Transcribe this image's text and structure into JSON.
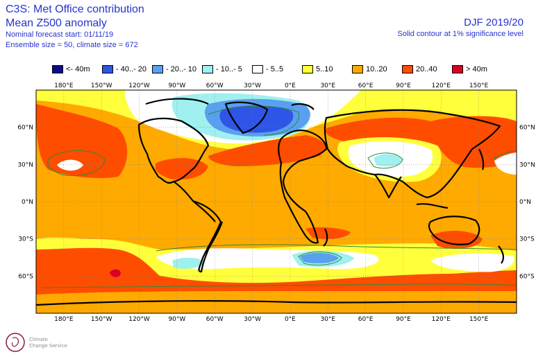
{
  "header": {
    "title_line1": "C3S: Met Office contribution",
    "title_line2": "Mean Z500 anomaly",
    "forecast_start": "Nominal forecast start: 01/11/19",
    "ensemble": "Ensemble size = 50, climate size = 672",
    "season": "DJF 2019/20",
    "contour_note": "Solid contour at 1% significance level"
  },
  "legend": [
    {
      "label": "<- 40m",
      "color": "#0a0a8c"
    },
    {
      "label": "- 40..- 20",
      "color": "#2e55e6"
    },
    {
      "label": "- 20..- 10",
      "color": "#5aa0f0"
    },
    {
      "label": "- 10..- 5",
      "color": "#a0f0f0"
    },
    {
      "label": "- 5..5",
      "color": "#ffffff"
    },
    {
      "label": "5..10",
      "color": "#ffff3c"
    },
    {
      "label": "10..20",
      "color": "#ffaa00"
    },
    {
      "label": "20..40",
      "color": "#ff4d00"
    },
    {
      "label": "> 40m",
      "color": "#d80022"
    }
  ],
  "axes": {
    "lon_labels": [
      "180°E",
      "150°W",
      "120°W",
      "90°W",
      "60°W",
      "30°W",
      "0°E",
      "30°E",
      "60°E",
      "90°E",
      "120°E",
      "150°E"
    ],
    "lat_labels": [
      "60°N",
      "30°N",
      "0°N",
      "30°S",
      "60°S"
    ]
  },
  "map": {
    "projection": "equirectangular",
    "lon_range": [
      -202,
      180
    ],
    "lat_range": [
      -90,
      90
    ],
    "background_color": "#ffaa00",
    "colormap_units": "m"
  },
  "logo": {
    "text_line1": "Climate",
    "text_line2": "Change Service"
  }
}
